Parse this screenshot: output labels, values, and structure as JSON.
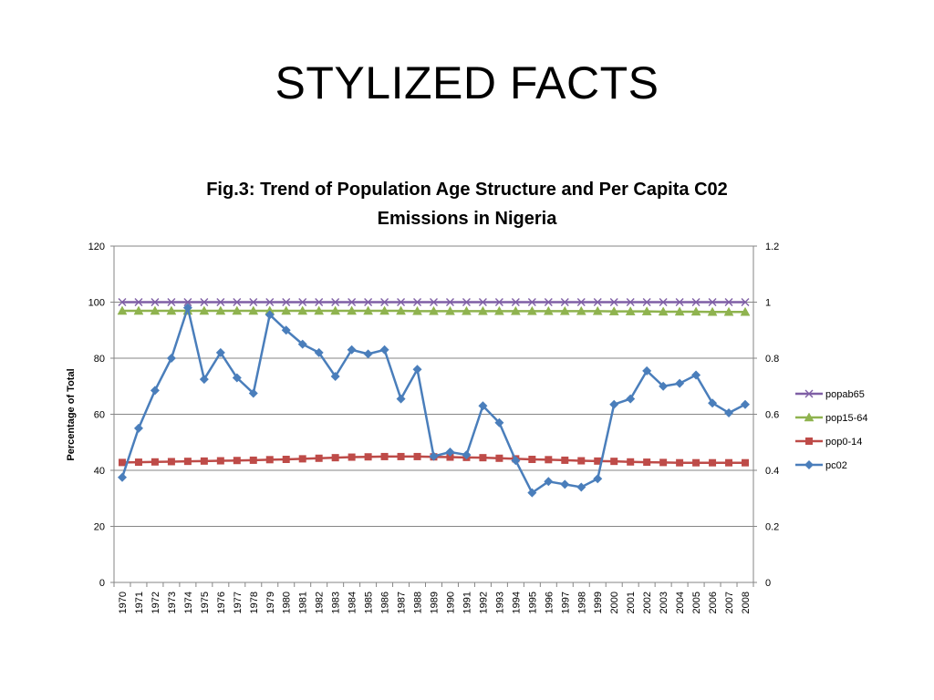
{
  "slide": {
    "title": "STYLIZED FACTS"
  },
  "chart_data": {
    "type": "line",
    "title": "Fig.3: Trend of Population Age Structure and Per Capita C02 Emissions in Nigeria",
    "title_lines": [
      "Fig.3: Trend of Population Age Structure and Per Capita C02",
      "Emissions in Nigeria"
    ],
    "ylabel": "Percentage of  Total",
    "y2label": "",
    "xlabel": "",
    "ylim": [
      0,
      120
    ],
    "y2lim": [
      0,
      1.2
    ],
    "yticks": [
      "0",
      "20",
      "40",
      "60",
      "80",
      "100",
      "120"
    ],
    "y2ticks": [
      "0",
      "0.2",
      "0.4",
      "0.6",
      "0.8",
      "1",
      "1.2"
    ],
    "grid": true,
    "legend_position": "right",
    "x": [
      "1970",
      "1971",
      "1972",
      "1973",
      "1974",
      "1975",
      "1976",
      "1977",
      "1978",
      "1979",
      "1980",
      "1981",
      "1982",
      "1983",
      "1984",
      "1985",
      "1986",
      "1987",
      "1988",
      "1989",
      "1990",
      "1991",
      "1992",
      "1993",
      "1994",
      "1995",
      "1996",
      "1997",
      "1998",
      "1999",
      "2000",
      "2001",
      "2002",
      "2003",
      "2004",
      "2005",
      "2006",
      "2007",
      "2008"
    ],
    "series": [
      {
        "name": "popab65",
        "axis": "left",
        "color": "#7f5fa5",
        "marker": "x",
        "values": [
          100,
          100,
          100,
          100,
          100,
          100,
          100,
          100,
          100,
          100,
          100,
          100,
          100,
          100,
          100,
          100,
          100,
          100,
          100,
          100,
          100,
          100,
          100,
          100,
          100,
          100,
          100,
          100,
          100,
          100,
          100,
          100,
          100,
          100,
          100,
          100,
          100,
          100,
          100
        ]
      },
      {
        "name": "pop15-64",
        "axis": "left",
        "color": "#8fb34f",
        "marker": "triangle",
        "values": [
          96.9,
          96.9,
          96.9,
          96.9,
          96.9,
          96.9,
          96.9,
          96.9,
          96.9,
          96.9,
          96.9,
          96.9,
          96.9,
          96.9,
          96.9,
          96.9,
          96.9,
          96.9,
          96.8,
          96.8,
          96.8,
          96.8,
          96.8,
          96.8,
          96.8,
          96.8,
          96.8,
          96.8,
          96.8,
          96.8,
          96.7,
          96.7,
          96.7,
          96.6,
          96.6,
          96.6,
          96.5,
          96.5,
          96.5
        ]
      },
      {
        "name": "pop0-14",
        "axis": "left",
        "color": "#be4b48",
        "marker": "square",
        "values": [
          42.8,
          42.9,
          43.0,
          43.1,
          43.2,
          43.3,
          43.4,
          43.5,
          43.6,
          43.8,
          43.9,
          44.1,
          44.3,
          44.5,
          44.7,
          44.8,
          44.9,
          44.9,
          44.9,
          44.8,
          44.7,
          44.6,
          44.5,
          44.3,
          44.1,
          43.9,
          43.8,
          43.6,
          43.4,
          43.3,
          43.2,
          43.0,
          42.9,
          42.8,
          42.7,
          42.7,
          42.7,
          42.7,
          42.7
        ]
      },
      {
        "name": "pc02",
        "axis": "right",
        "color": "#4a7ebb",
        "marker": "diamond",
        "values": [
          0.375,
          0.55,
          0.685,
          0.8,
          0.98,
          0.725,
          0.82,
          0.73,
          0.675,
          0.955,
          0.9,
          0.85,
          0.82,
          0.735,
          0.83,
          0.815,
          0.83,
          0.655,
          0.76,
          0.45,
          0.465,
          0.455,
          0.63,
          0.57,
          0.435,
          0.32,
          0.36,
          0.35,
          0.34,
          0.37,
          0.635,
          0.655,
          0.755,
          0.7,
          0.71,
          0.74,
          0.64,
          0.605,
          0.635
        ]
      }
    ]
  }
}
